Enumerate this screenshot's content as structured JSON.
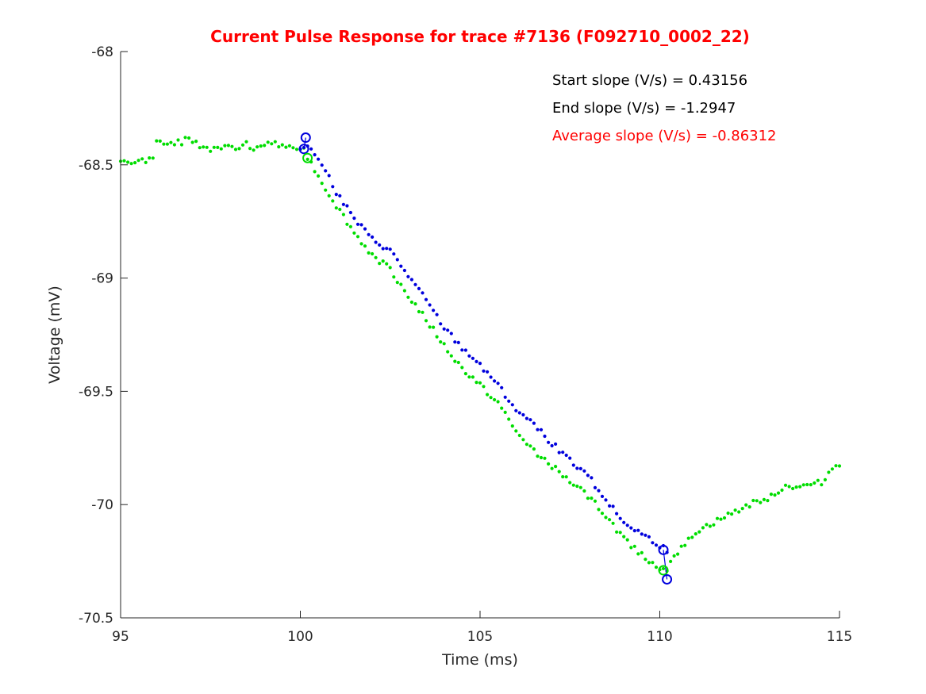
{
  "chart_data": {
    "type": "scatter",
    "title": "Current Pulse Response for trace #7136 (F092710_0002_22)",
    "title_color": "#ff0000",
    "xlabel": "Time (ms)",
    "ylabel": "Voltage (mV)",
    "xlim": [
      95,
      115
    ],
    "ylim": [
      -70.5,
      -68
    ],
    "xticks": [
      95,
      100,
      105,
      110,
      115
    ],
    "yticks": [
      -68,
      -68.5,
      -69,
      -69.5,
      -70,
      -70.5
    ],
    "xtick_labels": [
      "95",
      "100",
      "105",
      "110",
      "115"
    ],
    "ytick_labels": [
      "-68",
      "-68.5",
      "-69",
      "-69.5",
      "-70",
      "-70.5"
    ],
    "grid": false,
    "annotations": [
      {
        "text": "Start slope (V/s) = 0.43156",
        "color": "#000000"
      },
      {
        "text": "End slope (V/s) = -1.2947",
        "color": "#000000"
      },
      {
        "text": "Average slope (V/s) = -0.86312",
        "color": "#ff0000"
      }
    ],
    "series": [
      {
        "color": "#00dd00",
        "marker": "dot",
        "segments": [
          {
            "x0": 95.0,
            "x1": 100.1,
            "points": [
              [
                95.0,
                -68.49
              ],
              [
                95.7,
                -68.48
              ],
              [
                95.8,
                -68.48
              ],
              [
                95.9,
                -68.46
              ],
              [
                96.0,
                -68.4
              ],
              [
                96.3,
                -68.41
              ],
              [
                96.7,
                -68.4
              ],
              [
                96.9,
                -68.38
              ],
              [
                97.2,
                -68.42
              ],
              [
                97.5,
                -68.43
              ],
              [
                97.8,
                -68.42
              ],
              [
                98.2,
                -68.43
              ],
              [
                98.5,
                -68.41
              ],
              [
                98.8,
                -68.43
              ],
              [
                99.1,
                -68.4
              ],
              [
                99.5,
                -68.42
              ],
              [
                99.8,
                -68.42
              ],
              [
                100.1,
                -68.42
              ]
            ]
          },
          {
            "x0": 100.2,
            "x1": 110.2,
            "points": [
              [
                100.2,
                -68.47
              ],
              [
                100.4,
                -68.52
              ],
              [
                100.6,
                -68.58
              ],
              [
                101.0,
                -68.68
              ],
              [
                101.5,
                -68.8
              ],
              [
                102.0,
                -68.9
              ],
              [
                102.5,
                -68.96
              ],
              [
                103.0,
                -69.08
              ],
              [
                103.5,
                -69.18
              ],
              [
                104.0,
                -69.3
              ],
              [
                104.5,
                -69.4
              ],
              [
                105.0,
                -69.47
              ],
              [
                105.5,
                -69.55
              ],
              [
                106.0,
                -69.68
              ],
              [
                106.5,
                -69.76
              ],
              [
                107.0,
                -69.83
              ],
              [
                107.5,
                -69.9
              ],
              [
                108.0,
                -69.96
              ],
              [
                108.5,
                -70.05
              ],
              [
                109.0,
                -70.15
              ],
              [
                109.5,
                -70.22
              ],
              [
                110.0,
                -70.28
              ],
              [
                110.2,
                -70.29
              ]
            ]
          },
          {
            "x0": 110.3,
            "x1": 115.0,
            "points": [
              [
                110.3,
                -70.24
              ],
              [
                110.7,
                -70.18
              ],
              [
                111.0,
                -70.12
              ],
              [
                111.5,
                -70.08
              ],
              [
                112.0,
                -70.04
              ],
              [
                112.5,
                -70.0
              ],
              [
                113.0,
                -69.97
              ],
              [
                113.5,
                -69.92
              ],
              [
                114.0,
                -69.92
              ],
              [
                114.5,
                -69.9
              ],
              [
                114.8,
                -69.84
              ],
              [
                115.0,
                -69.82
              ]
            ]
          }
        ]
      },
      {
        "color": "#0000dd",
        "marker": "dot",
        "segments": [
          {
            "x0": 100.0,
            "x1": 110.2,
            "points": [
              [
                100.0,
                -68.42
              ],
              [
                100.3,
                -68.43
              ],
              [
                100.6,
                -68.49
              ],
              [
                101.0,
                -68.62
              ],
              [
                101.5,
                -68.74
              ],
              [
                102.0,
                -68.83
              ],
              [
                102.5,
                -68.88
              ],
              [
                103.0,
                -68.99
              ],
              [
                103.5,
                -69.1
              ],
              [
                104.0,
                -69.22
              ],
              [
                104.5,
                -69.31
              ],
              [
                105.0,
                -69.38
              ],
              [
                105.5,
                -69.47
              ],
              [
                106.0,
                -69.58
              ],
              [
                106.5,
                -69.65
              ],
              [
                107.0,
                -69.73
              ],
              [
                107.5,
                -69.8
              ],
              [
                108.0,
                -69.87
              ],
              [
                108.5,
                -69.98
              ],
              [
                109.0,
                -70.08
              ],
              [
                109.5,
                -70.13
              ],
              [
                110.0,
                -70.18
              ],
              [
                110.2,
                -70.2
              ]
            ]
          }
        ]
      }
    ],
    "markers": [
      {
        "x": 100.15,
        "y": -68.38,
        "color": "#0000dd",
        "shape": "circle"
      },
      {
        "x": 100.1,
        "y": -68.43,
        "color": "#0000dd",
        "shape": "circle"
      },
      {
        "x": 100.2,
        "y": -68.47,
        "color": "#00dd00",
        "shape": "circle"
      },
      {
        "x": 110.1,
        "y": -70.2,
        "color": "#0000dd",
        "shape": "circle"
      },
      {
        "x": 110.1,
        "y": -70.29,
        "color": "#00dd00",
        "shape": "circle"
      },
      {
        "x": 110.2,
        "y": -70.33,
        "color": "#0000dd",
        "shape": "circle"
      }
    ],
    "lines": [
      {
        "x": [
          100.1,
          100.15
        ],
        "y": [
          -68.43,
          -68.38
        ],
        "color": "#0000dd"
      },
      {
        "x": [
          110.1,
          110.2
        ],
        "y": [
          -70.2,
          -70.33
        ],
        "color": "#0000dd"
      }
    ]
  }
}
